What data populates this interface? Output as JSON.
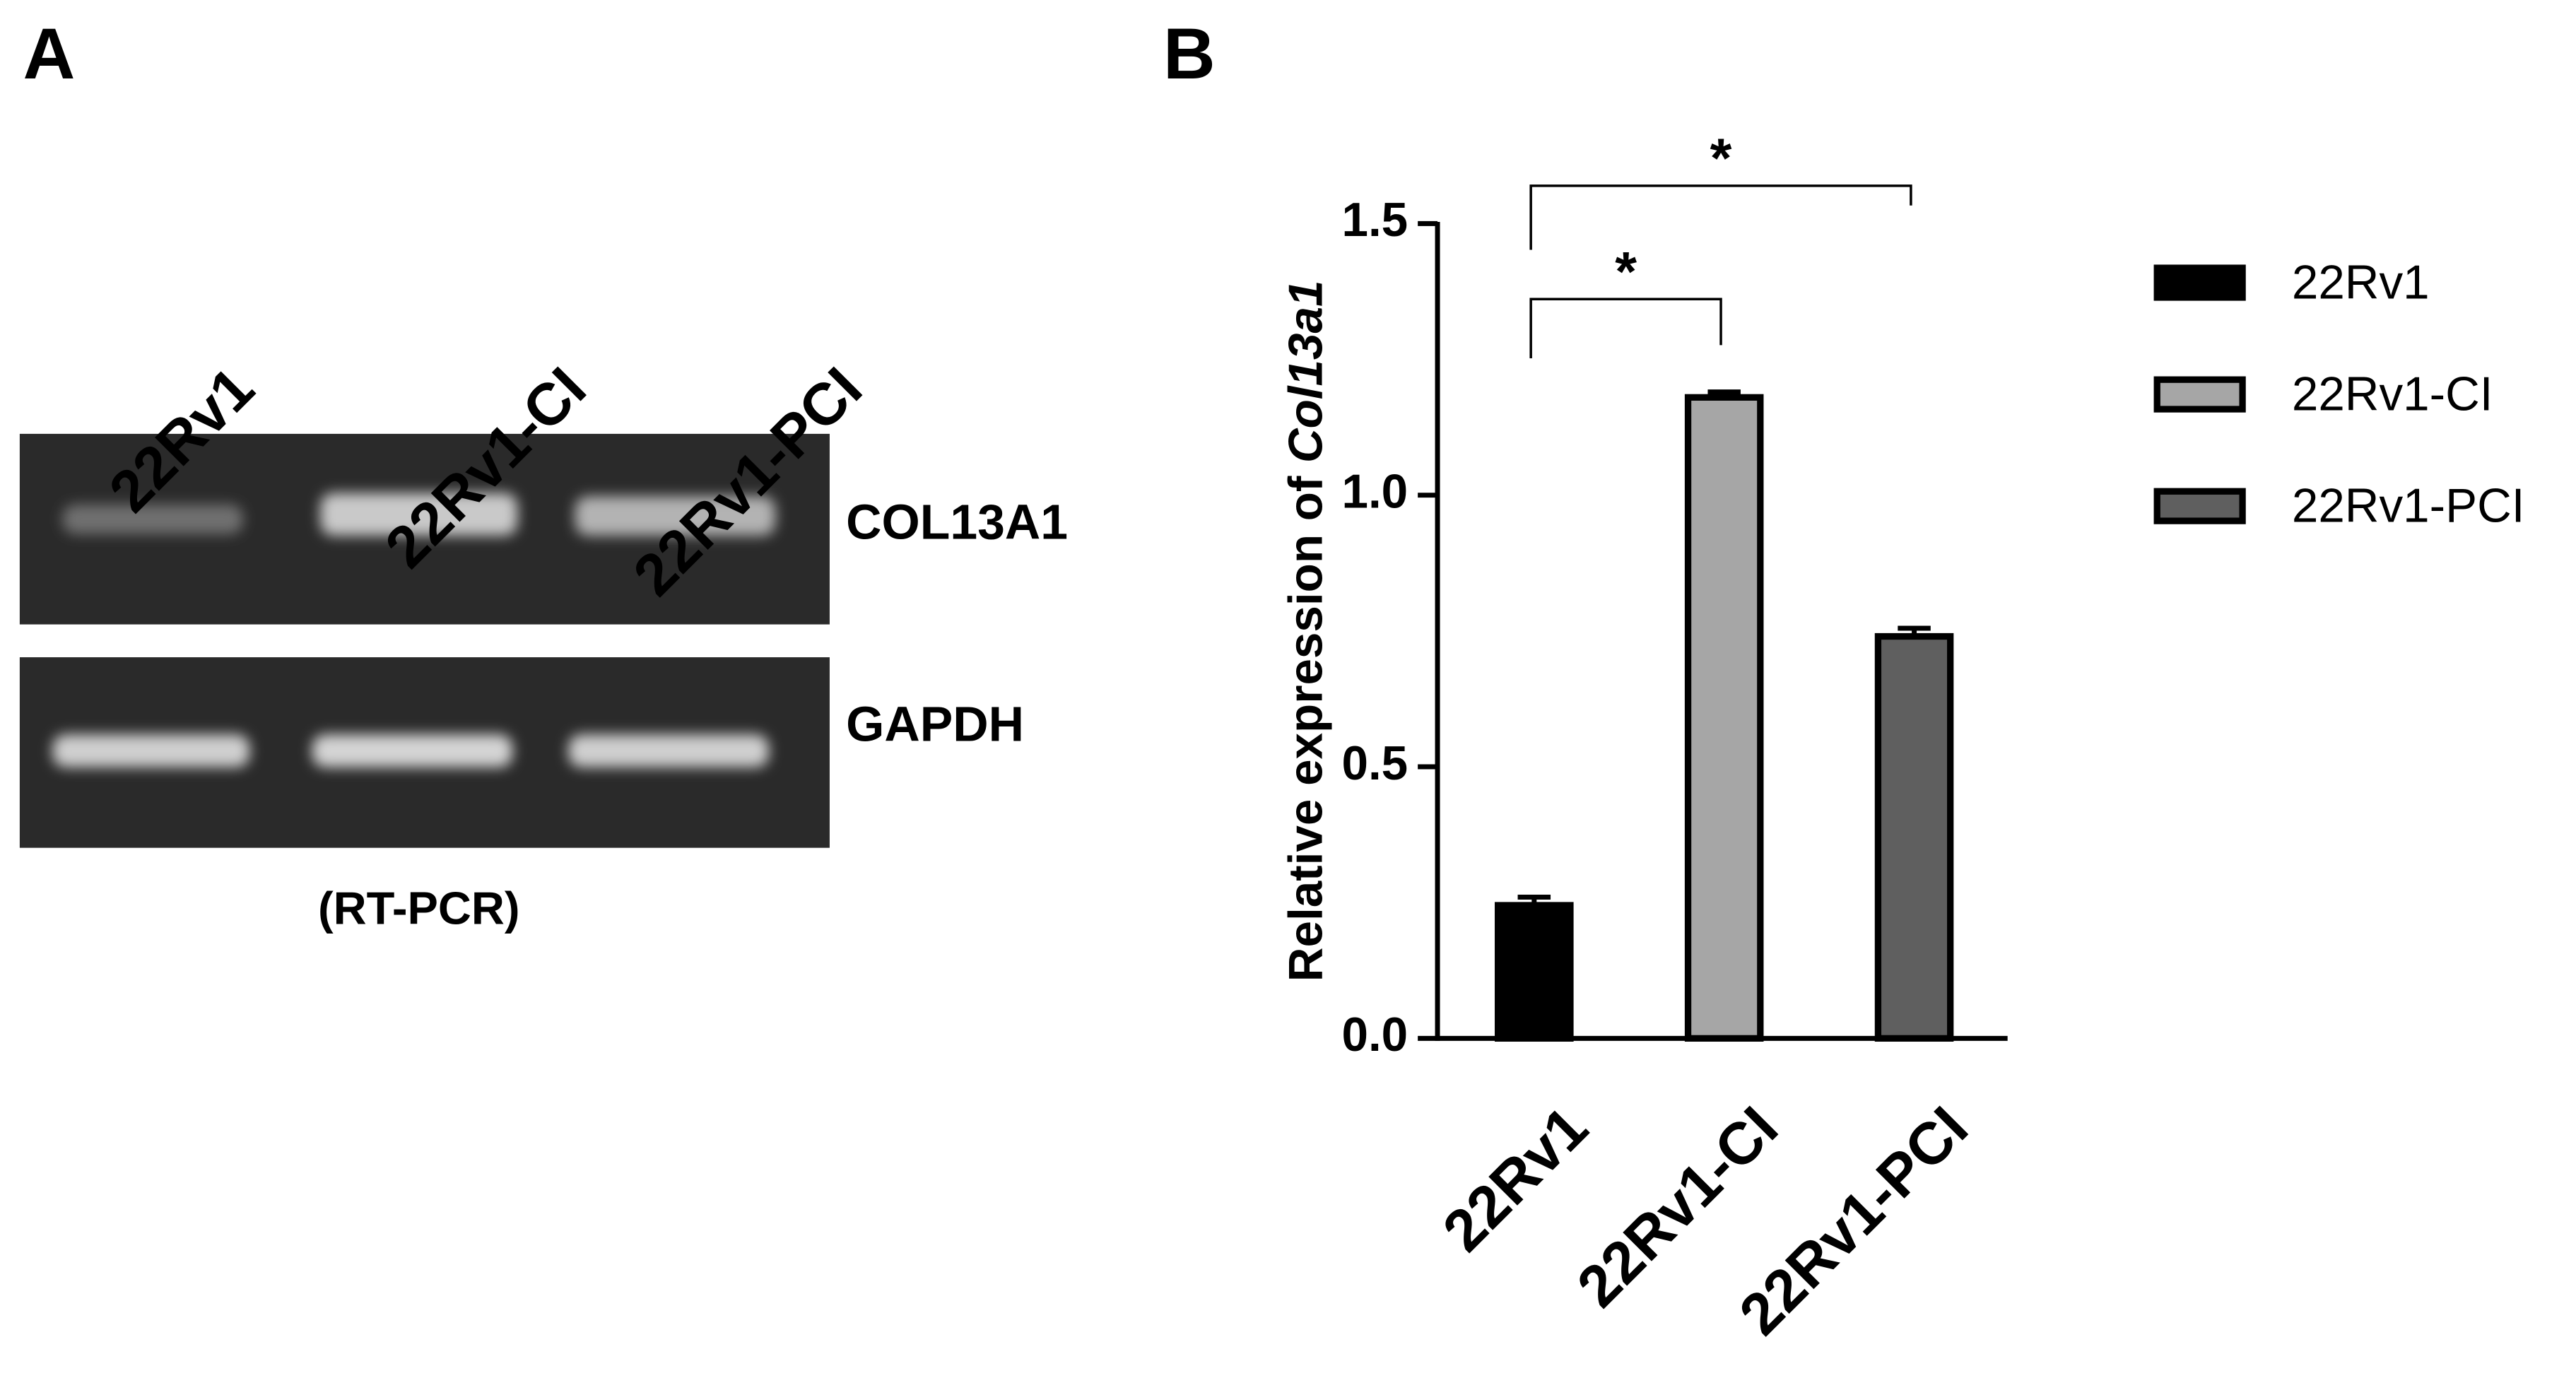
{
  "panel_a": {
    "label": "A",
    "lanes": [
      "22Rv1",
      "22Rv1-CI",
      "22Rv1-PCI"
    ],
    "bands": [
      "COL13A1",
      "GAPDH"
    ],
    "caption": "(RT-PCR)"
  },
  "panel_b_label": "B",
  "chart_data": {
    "type": "bar",
    "y_label": "Relative expression of",
    "y_label_gene": "Col13a1",
    "categories": [
      "22Rv1",
      "22Rv1-CI",
      "22Rv1-PCI"
    ],
    "values": [
      0.245,
      1.18,
      0.74
    ],
    "errors": [
      0.015,
      0.01,
      0.015
    ],
    "colors": [
      "#000000",
      "#a6a6a6",
      "#5f5f5f"
    ],
    "ylim": [
      0,
      1.5
    ],
    "yticks": [
      {
        "value": 0,
        "label": "0.0"
      },
      0.5,
      {
        "value": 1,
        "label": "1.0"
      },
      1.5
    ],
    "legend": [
      "22Rv1",
      "22Rv1-CI",
      "22Rv1-PCI"
    ],
    "legend_position": "right",
    "comparisons": [
      {
        "groups": [
          "22Rv1",
          "22Rv1-CI"
        ],
        "label": "*"
      },
      {
        "groups": [
          "22Rv1",
          "22Rv1-PCI"
        ],
        "label": "*"
      }
    ]
  }
}
